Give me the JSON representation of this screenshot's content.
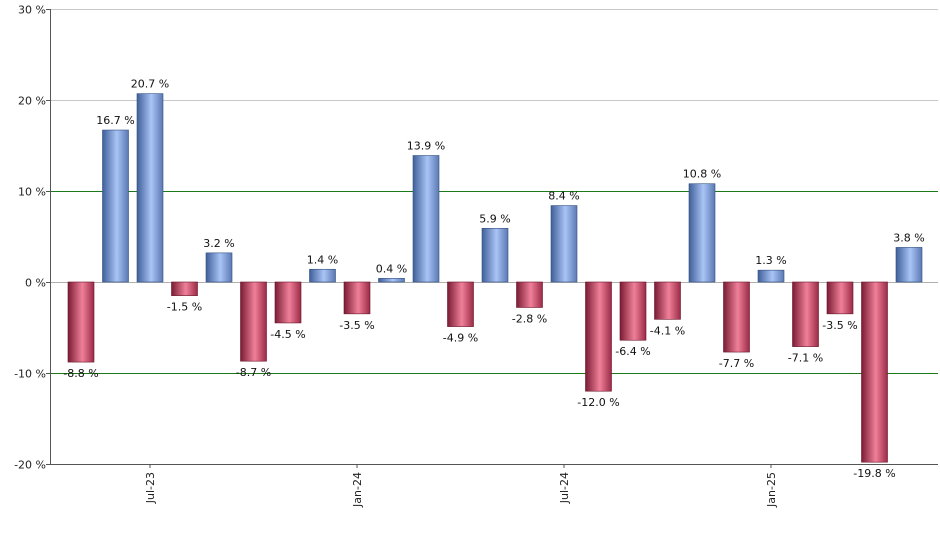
{
  "chart_data": {
    "type": "bar",
    "title": "",
    "xlabel": "",
    "ylabel": "",
    "ylim": [
      -20,
      30
    ],
    "y_ticks": [
      "30 %",
      "20 %",
      "10 %",
      "0 %",
      "-10 %",
      "-20 %"
    ],
    "y_tick_values": [
      30,
      20,
      10,
      0,
      -10,
      -20
    ],
    "x_tick_labels": [
      {
        "label": "Jul-23",
        "index": 2
      },
      {
        "label": "Jan-24",
        "index": 8
      },
      {
        "label": "Jul-24",
        "index": 14
      },
      {
        "label": "Jan-25",
        "index": 20
      }
    ],
    "values": [
      -8.8,
      16.7,
      20.7,
      -1.5,
      3.2,
      -8.7,
      -4.5,
      1.4,
      -3.5,
      0.4,
      13.9,
      -4.9,
      5.9,
      -2.8,
      8.4,
      -12.0,
      -6.4,
      -4.1,
      10.8,
      -7.7,
      1.3,
      -7.1,
      -3.5,
      -19.8,
      3.8
    ],
    "labels": [
      "-8.8 %",
      "16.7 %",
      "20.7 %",
      "-1.5 %",
      "3.2 %",
      "-8.7 %",
      "-4.5 %",
      "1.4 %",
      "-3.5 %",
      "0.4 %",
      "13.9 %",
      "-4.9 %",
      "5.9 %",
      "-2.8 %",
      "8.4 %",
      "-12.0 %",
      "-6.4 %",
      "-4.1 %",
      "10.8 %",
      "-7.7 %",
      "1.3 %",
      "-7.1 %",
      "-3.5 %",
      "-19.8 %",
      "3.8 %"
    ],
    "grid": true,
    "colors": {
      "positive_light": "#a9c4f5",
      "positive_dark": "#3f5f9a",
      "negative_light": "#f0809a",
      "negative_dark": "#7a1c34",
      "grid_green": "#1a7a1a",
      "grid_gray": "#c8c8c8",
      "axis": "#555555"
    }
  }
}
